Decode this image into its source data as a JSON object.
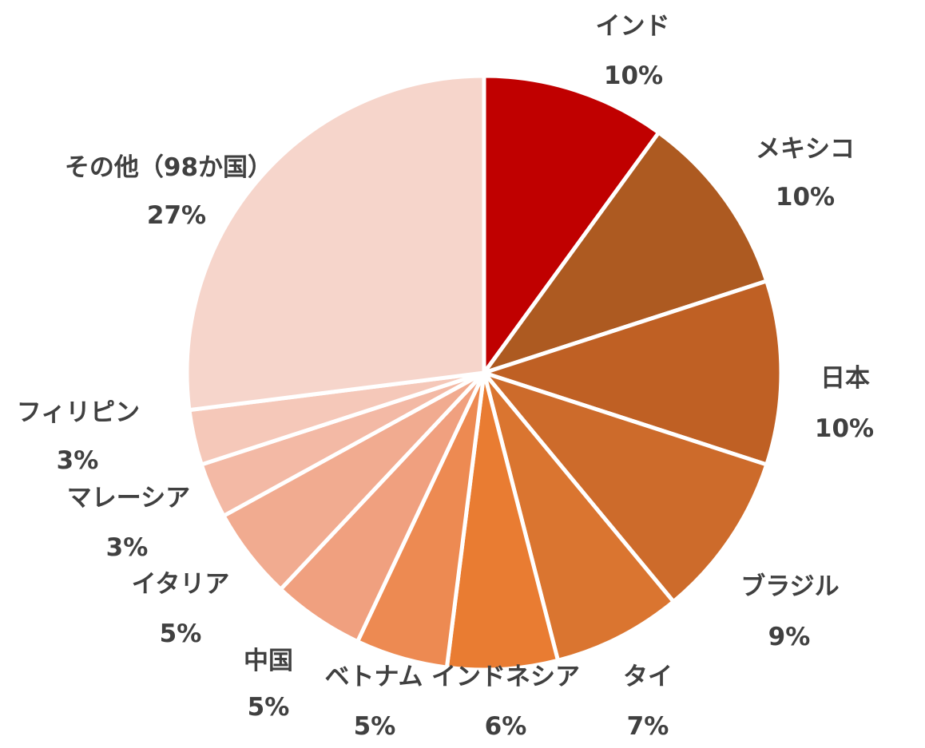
{
  "chart_data": {
    "type": "pie",
    "start_angle_deg": 0,
    "direction": "clockwise",
    "slices": [
      {
        "label": "インド",
        "value": 10,
        "value_label": "10%",
        "color": "#c00000"
      },
      {
        "label": "メキシコ",
        "value": 10,
        "value_label": "10%",
        "color": "#ad5a21"
      },
      {
        "label": "日本",
        "value": 10,
        "value_label": "10%",
        "color": "#bf6024"
      },
      {
        "label": "ブラジル",
        "value": 9,
        "value_label": "9%",
        "color": "#cd6b2b"
      },
      {
        "label": "タイ",
        "value": 7,
        "value_label": "7%",
        "color": "#da7530"
      },
      {
        "label": "インドネシア",
        "value": 6,
        "value_label": "6%",
        "color": "#e97c32"
      },
      {
        "label": "ベトナム",
        "value": 5,
        "value_label": "5%",
        "color": "#ed8a52"
      },
      {
        "label": "中国",
        "value": 5,
        "value_label": "5%",
        "color": "#f0a07f"
      },
      {
        "label": "イタリア",
        "value": 5,
        "value_label": "5%",
        "color": "#f1ab90"
      },
      {
        "label": "マレーシア",
        "value": 3,
        "value_label": "3%",
        "color": "#f3b9a5"
      },
      {
        "label": "フィリピン",
        "value": 3,
        "value_label": "3%",
        "color": "#f5c8b9"
      },
      {
        "label": "その他（98か国）",
        "value": 27,
        "value_label": "27%",
        "color": "#f6d5cb"
      }
    ]
  }
}
